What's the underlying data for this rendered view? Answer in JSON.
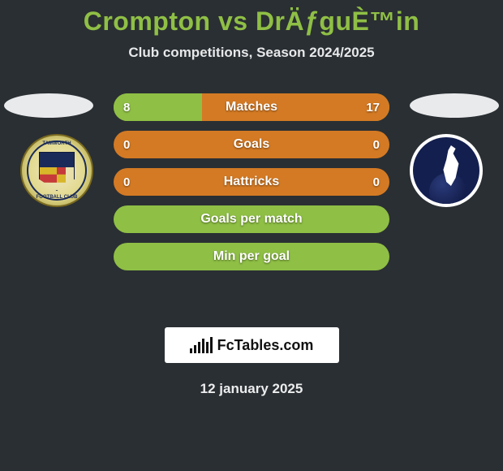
{
  "background_color": "#2a2f33",
  "title": {
    "player1": "Crompton",
    "vs": "vs",
    "player2": "DrÄƒguÈ™in",
    "color_p1": "#8fbf45",
    "color_vs": "#8fbf45",
    "color_p2": "#8fbf45",
    "fontsize": 32
  },
  "subtitle": {
    "text": "Club competitions, Season 2024/2025",
    "fontsize": 17,
    "color": "#e7e8e9"
  },
  "badges": {
    "left": {
      "name": "tamworth-fc",
      "arc_top": "TAMWORTH",
      "arc_bottom": "FOOTBALL CLUB"
    },
    "right": {
      "name": "tottenham-hotspur"
    }
  },
  "ellipse_color": "#e9eaec",
  "rows": [
    {
      "label": "Matches",
      "left_value": "8",
      "right_value": "17",
      "left_pct": 32,
      "right_pct": 68,
      "left_color": "#8fbf45",
      "right_color": "#d47a24",
      "empty_color": "#8fbf45"
    },
    {
      "label": "Goals",
      "left_value": "0",
      "right_value": "0",
      "left_pct": 0,
      "right_pct": 0,
      "left_color": "#8fbf45",
      "right_color": "#d47a24",
      "empty_color": "#d47a24"
    },
    {
      "label": "Hattricks",
      "left_value": "0",
      "right_value": "0",
      "left_pct": 0,
      "right_pct": 0,
      "left_color": "#8fbf45",
      "right_color": "#d47a24",
      "empty_color": "#d47a24"
    },
    {
      "label": "Goals per match",
      "left_value": "",
      "right_value": "",
      "left_pct": 0,
      "right_pct": 0,
      "left_color": "#8fbf45",
      "right_color": "#d47a24",
      "empty_color": "#8fbf45"
    },
    {
      "label": "Min per goal",
      "left_value": "",
      "right_value": "",
      "left_pct": 0,
      "right_pct": 0,
      "left_color": "#8fbf45",
      "right_color": "#d47a24",
      "empty_color": "#8fbf45"
    }
  ],
  "row_style": {
    "height": 34,
    "gap": 12,
    "radius": 17,
    "label_fontsize": 16,
    "value_fontsize": 15,
    "label_color": "#ffffff"
  },
  "watermark": {
    "text": "FcTables.com",
    "bg": "#ffffff",
    "color": "#111111",
    "bars": [
      6,
      10,
      14,
      18,
      14,
      20
    ]
  },
  "date": {
    "text": "12 january 2025",
    "fontsize": 17,
    "color": "#eceded"
  }
}
